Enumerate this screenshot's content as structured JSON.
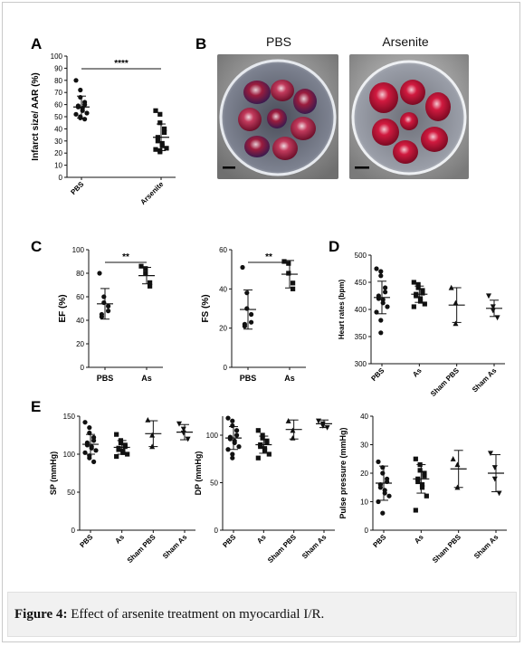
{
  "figure_caption": {
    "label": "Figure 4:",
    "text": " Effect of arsenite treatment on myocardial I/R."
  },
  "panel_letters": {
    "A": "A",
    "B": "B",
    "C": "C",
    "D": "D",
    "E": "E"
  },
  "photos": {
    "left_title": "PBS",
    "right_title": "Arsenite"
  },
  "chart_data": [
    {
      "id": "A",
      "type": "scatter",
      "ylabel": "Infarct size/ AAR (%)",
      "ylim": [
        0,
        100
      ],
      "yticks": [
        0,
        10,
        20,
        30,
        40,
        50,
        60,
        70,
        80,
        90,
        100
      ],
      "categories": [
        "PBS",
        "Arsenite"
      ],
      "series": [
        {
          "values": [
            80,
            72,
            66,
            62,
            60,
            59,
            58,
            57,
            55,
            53,
            52,
            50,
            49,
            48
          ],
          "marker": "circle",
          "mean": 58,
          "sd": 9
        },
        {
          "values": [
            55,
            52,
            45,
            40,
            37,
            33,
            30,
            28,
            26,
            24,
            23,
            22,
            21
          ],
          "marker": "square",
          "mean": 33,
          "sd": 11
        }
      ],
      "significance": "****"
    },
    {
      "id": "C-EF",
      "type": "scatter",
      "ylabel": "EF (%)",
      "ylim": [
        0,
        100
      ],
      "yticks": [
        0,
        20,
        40,
        60,
        80,
        100
      ],
      "categories": [
        "PBS",
        "As"
      ],
      "series": [
        {
          "values": [
            80,
            60,
            55,
            52,
            48,
            45,
            43
          ],
          "marker": "circle",
          "mean": 54,
          "sd": 13
        },
        {
          "values": [
            86,
            84,
            80,
            72,
            69
          ],
          "marker": "square",
          "mean": 78,
          "sd": 7
        }
      ],
      "significance": "**"
    },
    {
      "id": "C-FS",
      "type": "scatter",
      "ylabel": "FS (%)",
      "ylim": [
        0,
        60
      ],
      "yticks": [
        0,
        20,
        40,
        60
      ],
      "categories": [
        "PBS",
        "As"
      ],
      "series": [
        {
          "values": [
            51,
            38,
            30,
            27,
            23,
            22,
            21
          ],
          "marker": "circle",
          "mean": 29.5,
          "sd": 10
        },
        {
          "values": [
            54,
            53,
            48,
            43,
            40
          ],
          "marker": "square",
          "mean": 47.5,
          "sd": 7
        }
      ],
      "significance": "**"
    },
    {
      "id": "D",
      "type": "scatter",
      "ylabel": "Heart rates (bpm)",
      "ylim": [
        300,
        500
      ],
      "yticks": [
        300,
        350,
        400,
        450,
        500
      ],
      "categories": [
        "PBS",
        "As",
        "Sham PBS",
        "Sham As"
      ],
      "series": [
        {
          "values": [
            475,
            470,
            462,
            440,
            432,
            425,
            420,
            418,
            412,
            405,
            395,
            380,
            357
          ],
          "marker": "circle",
          "mean": 422,
          "sd": 30
        },
        {
          "values": [
            450,
            446,
            440,
            435,
            430,
            428,
            425,
            420,
            415,
            410,
            405
          ],
          "marker": "square",
          "mean": 428,
          "sd": 15
        },
        {
          "values": [
            440,
            412,
            374
          ],
          "marker": "triangle",
          "mean": 408,
          "sd": 32
        },
        {
          "values": [
            425,
            405,
            398,
            385
          ],
          "marker": "tri-down",
          "mean": 402,
          "sd": 15
        }
      ]
    },
    {
      "id": "E-SP",
      "type": "scatter",
      "ylabel": "SP (mmHg)",
      "ylim": [
        0,
        150
      ],
      "yticks": [
        0,
        50,
        100,
        150
      ],
      "categories": [
        "PBS",
        "As",
        "Sham PBS",
        "Sham As"
      ],
      "series": [
        {
          "values": [
            142,
            135,
            128,
            122,
            118,
            115,
            112,
            110,
            108,
            105,
            102,
            98,
            95,
            90
          ],
          "marker": "circle",
          "mean": 113,
          "sd": 13
        },
        {
          "values": [
            126,
            118,
            115,
            112,
            110,
            108,
            106,
            104,
            102,
            100,
            97
          ],
          "marker": "square",
          "mean": 109,
          "sd": 9
        },
        {
          "values": [
            145,
            125,
            110
          ],
          "marker": "triangle",
          "mean": 127,
          "sd": 17
        },
        {
          "values": [
            140,
            133,
            128,
            120
          ],
          "marker": "tri-down",
          "mean": 129,
          "sd": 10
        }
      ]
    },
    {
      "id": "E-DP",
      "type": "scatter",
      "ylabel": "DP (mmHg)",
      "ylim": [
        0,
        120
      ],
      "yticks": [
        0,
        50,
        100
      ],
      "categories": [
        "PBS",
        "As",
        "Sham PBS",
        "Sham As"
      ],
      "series": [
        {
          "values": [
            118,
            115,
            110,
            105,
            100,
            98,
            96,
            94,
            92,
            88,
            85,
            80,
            76
          ],
          "marker": "circle",
          "mean": 97,
          "sd": 12
        },
        {
          "values": [
            105,
            100,
            97,
            94,
            92,
            90,
            88,
            86,
            84,
            80,
            76
          ],
          "marker": "square",
          "mean": 90,
          "sd": 9
        },
        {
          "values": [
            115,
            105,
            97
          ],
          "marker": "triangle",
          "mean": 106,
          "sd": 10
        },
        {
          "values": [
            115,
            112,
            110,
            108
          ],
          "marker": "tri-down",
          "mean": 112,
          "sd": 4
        }
      ]
    },
    {
      "id": "E-PP",
      "type": "scatter",
      "ylabel": "Pulse pressure (mmHg)",
      "ylim": [
        0,
        40
      ],
      "yticks": [
        0,
        10,
        20,
        30,
        40
      ],
      "categories": [
        "PBS",
        "As",
        "Sham PBS",
        "Sham As"
      ],
      "series": [
        {
          "values": [
            24,
            22,
            20,
            18,
            17,
            16,
            15,
            14,
            13,
            12,
            10,
            6
          ],
          "marker": "circle",
          "mean": 16.5,
          "sd": 6
        },
        {
          "values": [
            25,
            23,
            21,
            20,
            19,
            18,
            17,
            16,
            15,
            12,
            7
          ],
          "marker": "square",
          "mean": 18,
          "sd": 5
        },
        {
          "values": [
            25,
            23,
            15
          ],
          "marker": "triangle",
          "mean": 21.5,
          "sd": 6.5
        },
        {
          "values": [
            27,
            22,
            18,
            13
          ],
          "marker": "tri-down",
          "mean": 20,
          "sd": 6.5
        }
      ]
    }
  ]
}
